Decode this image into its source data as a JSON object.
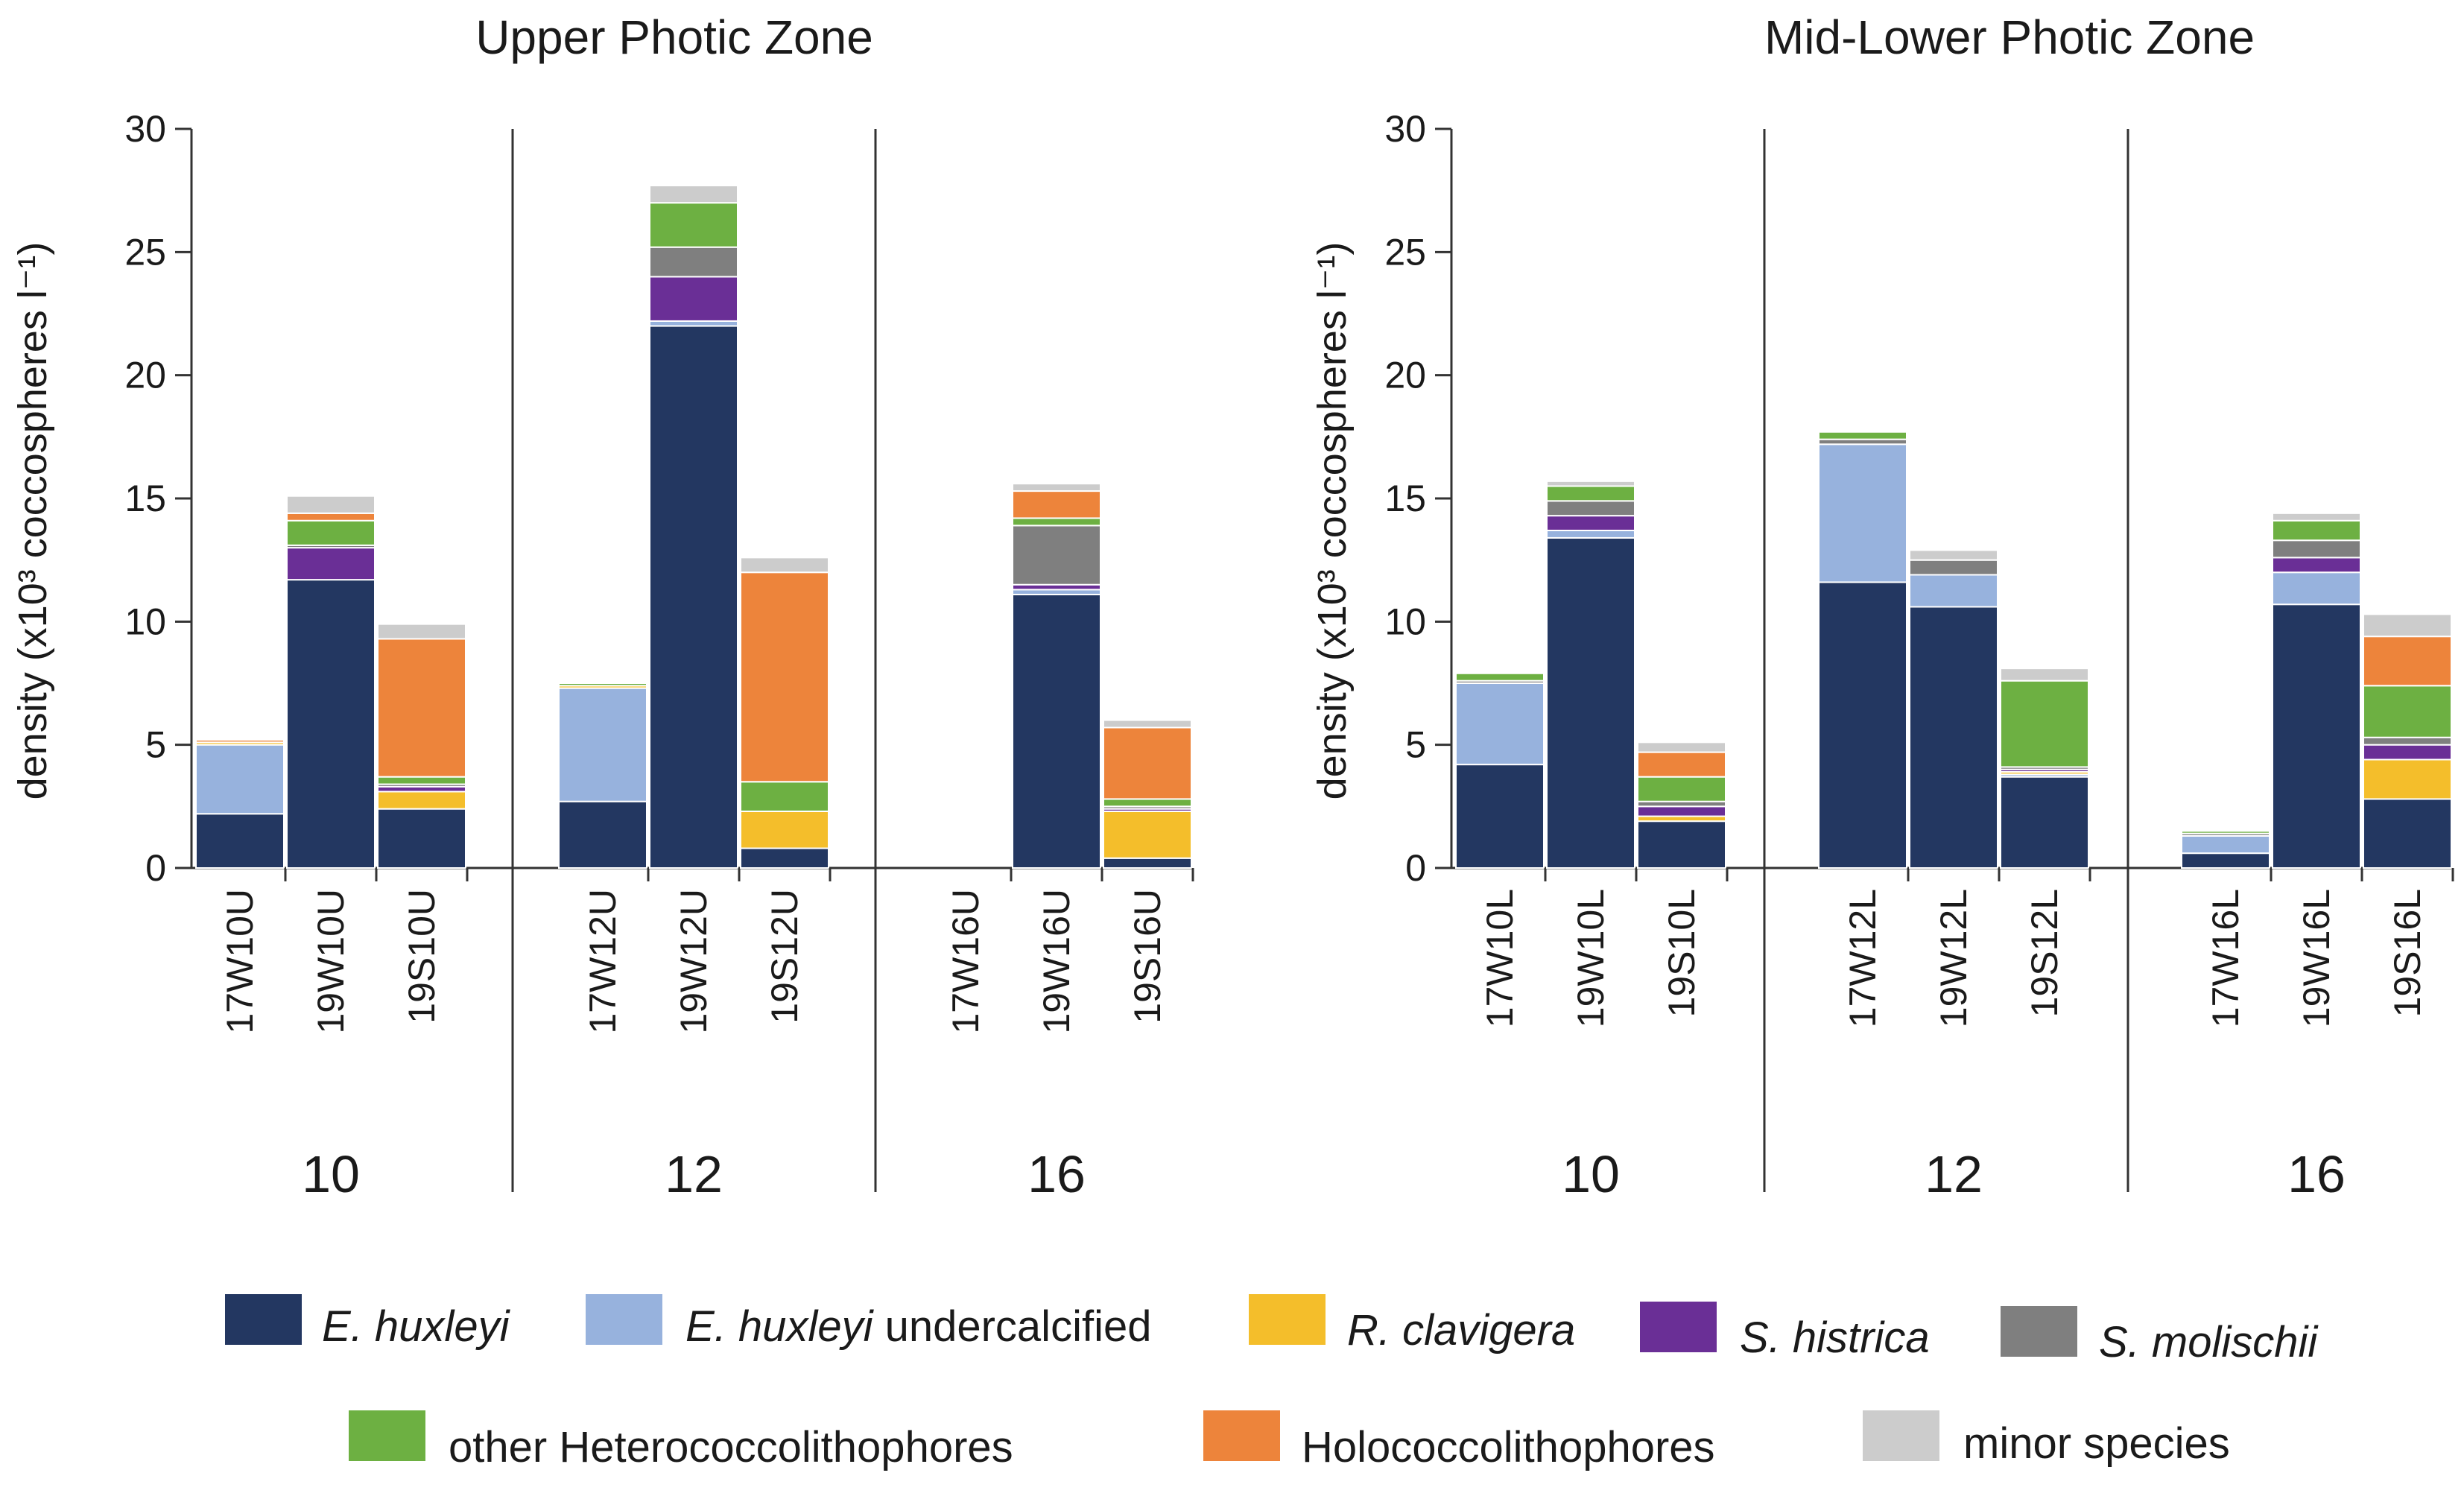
{
  "chart_data": {
    "type": "bar",
    "stacked": true,
    "ylabel": "density (x10³ coccospheres l⁻¹)",
    "ylim": [
      0,
      30
    ],
    "yticks": [
      0,
      5,
      10,
      15,
      20,
      25,
      30
    ],
    "grid": false,
    "legend_position": "bottom",
    "species": [
      {
        "key": "ehux",
        "label": "E. huxleyi",
        "italic": true,
        "suffix": "",
        "color": "#233761"
      },
      {
        "key": "ehux_u",
        "label": "E. huxleyi",
        "italic": true,
        "suffix": " undercalcified",
        "color": "#97b2dd"
      },
      {
        "key": "rcla",
        "label": "R. clavigera",
        "italic": true,
        "suffix": "",
        "color": "#f4be2b"
      },
      {
        "key": "shis",
        "label": "S. histrica",
        "italic": true,
        "suffix": "",
        "color": "#6a2f96"
      },
      {
        "key": "smol",
        "label": "S. molischii",
        "italic": true,
        "suffix": "",
        "color": "#7f7f7f"
      },
      {
        "key": "ohet",
        "label": "other Heterococcolithophores",
        "italic": false,
        "suffix": "",
        "color": "#6db042"
      },
      {
        "key": "holo",
        "label": "Holococcolithophores",
        "italic": false,
        "suffix": "",
        "color": "#ed843b"
      },
      {
        "key": "minor",
        "label": "minor species",
        "italic": false,
        "suffix": "",
        "color": "#cccccc"
      }
    ],
    "panels": [
      {
        "title": "Upper Photic Zone",
        "groups": [
          {
            "label": "10",
            "samples": [
              {
                "name": "17W10U",
                "values": {
                  "ehux": 2.2,
                  "ehux_u": 2.8,
                  "rcla": 0.1,
                  "shis": 0,
                  "smol": 0,
                  "ohet": 0,
                  "holo": 0.1,
                  "minor": 0
                }
              },
              {
                "name": "19W10U",
                "values": {
                  "ehux": 11.7,
                  "ehux_u": 0,
                  "rcla": 0,
                  "shis": 1.3,
                  "smol": 0.1,
                  "ohet": 1.0,
                  "holo": 0.3,
                  "minor": 0.7
                }
              },
              {
                "name": "19S10U",
                "values": {
                  "ehux": 2.4,
                  "ehux_u": 0,
                  "rcla": 0.7,
                  "shis": 0.2,
                  "smol": 0.1,
                  "ohet": 0.3,
                  "holo": 5.6,
                  "minor": 0.6
                }
              }
            ]
          },
          {
            "label": "12",
            "samples": [
              {
                "name": "17W12U",
                "values": {
                  "ehux": 2.7,
                  "ehux_u": 4.6,
                  "rcla": 0.1,
                  "shis": 0,
                  "smol": 0,
                  "ohet": 0.1,
                  "holo": 0,
                  "minor": 0
                }
              },
              {
                "name": "19W12U",
                "values": {
                  "ehux": 22.0,
                  "ehux_u": 0.2,
                  "rcla": 0,
                  "shis": 1.8,
                  "smol": 1.2,
                  "ohet": 1.8,
                  "holo": 0,
                  "minor": 0.7
                }
              },
              {
                "name": "19S12U",
                "values": {
                  "ehux": 0.8,
                  "ehux_u": 0,
                  "rcla": 1.5,
                  "shis": 0,
                  "smol": 0,
                  "ohet": 1.2,
                  "holo": 8.5,
                  "minor": 0.6
                }
              }
            ]
          },
          {
            "label": "16",
            "samples": [
              {
                "name": "17W16U",
                "values": {
                  "ehux": 0,
                  "ehux_u": 0,
                  "rcla": 0,
                  "shis": 0,
                  "smol": 0,
                  "ohet": 0,
                  "holo": 0,
                  "minor": 0
                }
              },
              {
                "name": "19W16U",
                "values": {
                  "ehux": 11.1,
                  "ehux_u": 0.2,
                  "rcla": 0,
                  "shis": 0.2,
                  "smol": 2.4,
                  "ohet": 0.3,
                  "holo": 1.1,
                  "minor": 0.3
                }
              },
              {
                "name": "19S16U",
                "values": {
                  "ehux": 0.4,
                  "ehux_u": 0,
                  "rcla": 1.9,
                  "shis": 0.1,
                  "smol": 0.1,
                  "ohet": 0.3,
                  "holo": 2.9,
                  "minor": 0.3
                }
              }
            ]
          }
        ]
      },
      {
        "title": "Mid-Lower Photic Zone",
        "groups": [
          {
            "label": "10",
            "samples": [
              {
                "name": "17W10L",
                "values": {
                  "ehux": 4.2,
                  "ehux_u": 3.3,
                  "rcla": 0,
                  "shis": 0,
                  "smol": 0.1,
                  "ohet": 0.3,
                  "holo": 0,
                  "minor": 0
                }
              },
              {
                "name": "19W10L",
                "values": {
                  "ehux": 13.4,
                  "ehux_u": 0.3,
                  "rcla": 0,
                  "shis": 0.6,
                  "smol": 0.6,
                  "ohet": 0.6,
                  "holo": 0,
                  "minor": 0.2
                }
              },
              {
                "name": "19S10L",
                "values": {
                  "ehux": 1.9,
                  "ehux_u": 0,
                  "rcla": 0.2,
                  "shis": 0.4,
                  "smol": 0.2,
                  "ohet": 1.0,
                  "holo": 1.0,
                  "minor": 0.4
                }
              }
            ]
          },
          {
            "label": "12",
            "samples": [
              {
                "name": "17W12L",
                "values": {
                  "ehux": 11.6,
                  "ehux_u": 5.6,
                  "rcla": 0,
                  "shis": 0,
                  "smol": 0.2,
                  "ohet": 0.3,
                  "holo": 0,
                  "minor": 0
                }
              },
              {
                "name": "19W12L",
                "values": {
                  "ehux": 10.6,
                  "ehux_u": 1.3,
                  "rcla": 0,
                  "shis": 0,
                  "smol": 0.6,
                  "ohet": 0,
                  "holo": 0,
                  "minor": 0.4
                }
              },
              {
                "name": "19S12L",
                "values": {
                  "ehux": 3.7,
                  "ehux_u": 0.1,
                  "rcla": 0.1,
                  "shis": 0.1,
                  "smol": 0.1,
                  "ohet": 3.5,
                  "holo": 0,
                  "minor": 0.5
                }
              }
            ]
          },
          {
            "label": "16",
            "samples": [
              {
                "name": "17W16L",
                "values": {
                  "ehux": 0.6,
                  "ehux_u": 0.7,
                  "rcla": 0,
                  "shis": 0,
                  "smol": 0.1,
                  "ohet": 0.1,
                  "holo": 0,
                  "minor": 0
                }
              },
              {
                "name": "19W16L",
                "values": {
                  "ehux": 10.7,
                  "ehux_u": 1.3,
                  "rcla": 0,
                  "shis": 0.6,
                  "smol": 0.7,
                  "ohet": 0.8,
                  "holo": 0,
                  "minor": 0.3
                }
              },
              {
                "name": "19S16L",
                "values": {
                  "ehux": 2.8,
                  "ehux_u": 0,
                  "rcla": 1.6,
                  "shis": 0.6,
                  "smol": 0.3,
                  "ohet": 2.1,
                  "holo": 2.0,
                  "minor": 0.9
                }
              }
            ]
          }
        ]
      }
    ]
  }
}
